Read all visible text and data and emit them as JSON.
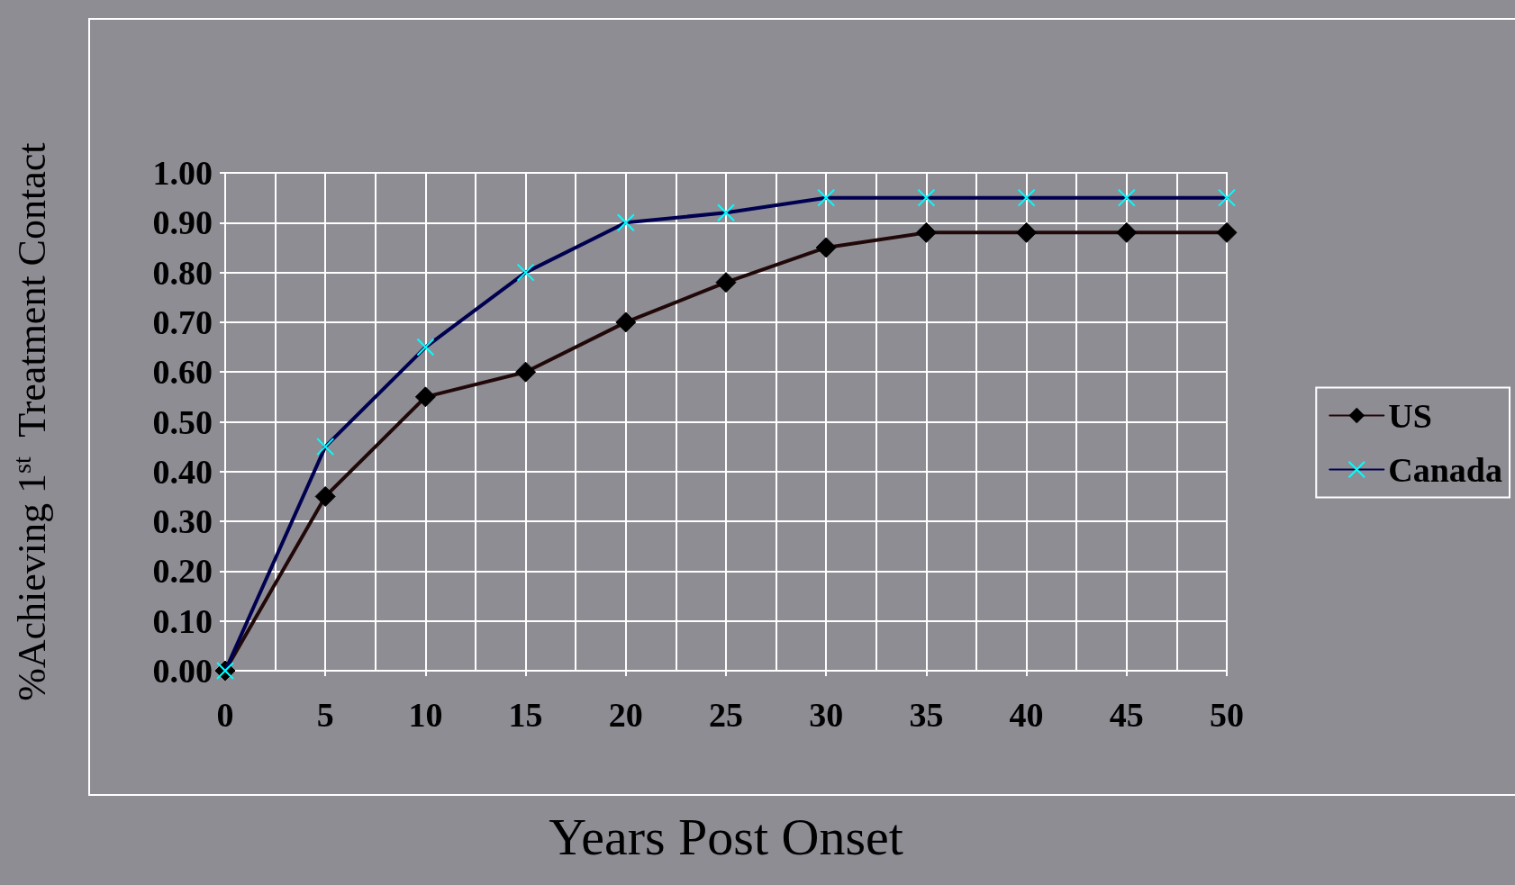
{
  "chart_data": {
    "type": "line",
    "xlabel": "Years Post Onset",
    "ylabel": "%Achieving 1$^{st}$  Treatment Contact",
    "x": [
      0,
      5,
      10,
      15,
      20,
      25,
      30,
      35,
      40,
      45,
      50
    ],
    "series": [
      {
        "name": "US",
        "color": "#200808",
        "marker": "diamond",
        "values": [
          0,
          0.35,
          0.55,
          0.6,
          0.7,
          0.78,
          0.85,
          0.88,
          0.88,
          0.88,
          0.88
        ]
      },
      {
        "name": "Canada",
        "color": "#000050",
        "marker": "cross",
        "values": [
          0,
          0.45,
          0.65,
          0.8,
          0.9,
          0.92,
          0.95,
          0.95,
          0.95,
          0.95,
          0.95
        ]
      }
    ],
    "xlim": [
      0,
      50
    ],
    "xticks": [
      0,
      5,
      10,
      15,
      20,
      25,
      30,
      35,
      40,
      45,
      50
    ],
    "ylim": [
      0,
      1
    ],
    "yticks": [
      {
        "value": 0,
        "label": "0.00"
      },
      {
        "value": 0.1,
        "label": "0.10"
      },
      {
        "value": 0.2,
        "label": "0.20"
      },
      {
        "value": 0.3,
        "label": "0.30"
      },
      {
        "value": 0.4,
        "label": "0.40"
      },
      {
        "value": 0.5,
        "label": "0.50"
      },
      {
        "value": 0.6,
        "label": "0.60"
      },
      {
        "value": 0.7,
        "label": "0.70"
      },
      {
        "value": 0.8,
        "label": "0.80"
      },
      {
        "value": 0.9,
        "label": "0.90"
      },
      {
        "value": 1,
        "label": "1.00"
      }
    ],
    "grid": true,
    "legend": "right",
    "line_style": "solid"
  }
}
